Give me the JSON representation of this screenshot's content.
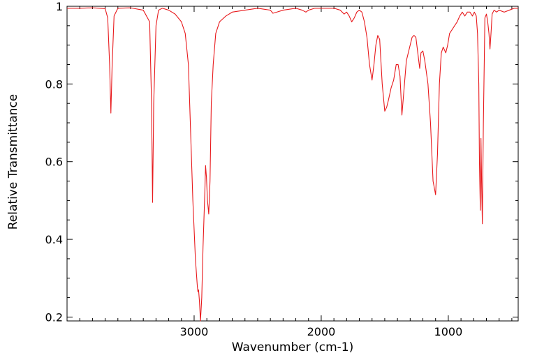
{
  "chart_data": {
    "type": "line",
    "title": "",
    "xlabel": "Wavenumber (cm-1)",
    "ylabel": "Relative Transmittance",
    "xlim": [
      4000,
      450
    ],
    "ylim": [
      0.19,
      1.0
    ],
    "x_reversed": true,
    "x_ticks": [
      3000,
      2000,
      1000
    ],
    "y_ticks": [
      0.2,
      0.4,
      0.6,
      0.8,
      1
    ],
    "y_tick_labels": [
      "0.2",
      "0.4",
      "0.6",
      "0.8",
      "1"
    ],
    "x_tick_labels": [
      "3000",
      "2000",
      "1000"
    ],
    "grid": false,
    "legend": "none",
    "line_color": "#e8191c",
    "series": [
      {
        "name": "",
        "points": [
          [
            4000,
            0.995
          ],
          [
            3900,
            0.995
          ],
          [
            3800,
            0.996
          ],
          [
            3700,
            0.994
          ],
          [
            3680,
            0.97
          ],
          [
            3665,
            0.85
          ],
          [
            3655,
            0.725
          ],
          [
            3645,
            0.85
          ],
          [
            3630,
            0.975
          ],
          [
            3600,
            0.995
          ],
          [
            3500,
            0.996
          ],
          [
            3400,
            0.99
          ],
          [
            3350,
            0.96
          ],
          [
            3335,
            0.75
          ],
          [
            3327,
            0.495
          ],
          [
            3318,
            0.75
          ],
          [
            3300,
            0.95
          ],
          [
            3280,
            0.99
          ],
          [
            3250,
            0.995
          ],
          [
            3200,
            0.99
          ],
          [
            3150,
            0.98
          ],
          [
            3100,
            0.96
          ],
          [
            3070,
            0.93
          ],
          [
            3045,
            0.85
          ],
          [
            3030,
            0.7
          ],
          [
            3010,
            0.5
          ],
          [
            2990,
            0.35
          ],
          [
            2975,
            0.28
          ],
          [
            2970,
            0.265
          ],
          [
            2965,
            0.27
          ],
          [
            2958,
            0.24
          ],
          [
            2950,
            0.19
          ],
          [
            2940,
            0.25
          ],
          [
            2930,
            0.38
          ],
          [
            2915,
            0.53
          ],
          [
            2910,
            0.59
          ],
          [
            2903,
            0.56
          ],
          [
            2895,
            0.5
          ],
          [
            2885,
            0.465
          ],
          [
            2875,
            0.55
          ],
          [
            2865,
            0.75
          ],
          [
            2850,
            0.85
          ],
          [
            2830,
            0.93
          ],
          [
            2800,
            0.96
          ],
          [
            2750,
            0.975
          ],
          [
            2700,
            0.985
          ],
          [
            2600,
            0.99
          ],
          [
            2500,
            0.995
          ],
          [
            2400,
            0.99
          ],
          [
            2380,
            0.982
          ],
          [
            2350,
            0.985
          ],
          [
            2300,
            0.99
          ],
          [
            2200,
            0.995
          ],
          [
            2150,
            0.99
          ],
          [
            2120,
            0.985
          ],
          [
            2100,
            0.99
          ],
          [
            2050,
            0.995
          ],
          [
            1900,
            0.995
          ],
          [
            1850,
            0.99
          ],
          [
            1820,
            0.98
          ],
          [
            1800,
            0.985
          ],
          [
            1780,
            0.975
          ],
          [
            1760,
            0.96
          ],
          [
            1740,
            0.97
          ],
          [
            1720,
            0.985
          ],
          [
            1700,
            0.99
          ],
          [
            1680,
            0.985
          ],
          [
            1660,
            0.96
          ],
          [
            1640,
            0.92
          ],
          [
            1620,
            0.85
          ],
          [
            1600,
            0.81
          ],
          [
            1585,
            0.85
          ],
          [
            1570,
            0.9
          ],
          [
            1555,
            0.925
          ],
          [
            1540,
            0.915
          ],
          [
            1520,
            0.8
          ],
          [
            1500,
            0.73
          ],
          [
            1485,
            0.74
          ],
          [
            1470,
            0.76
          ],
          [
            1450,
            0.79
          ],
          [
            1430,
            0.81
          ],
          [
            1410,
            0.85
          ],
          [
            1395,
            0.85
          ],
          [
            1380,
            0.82
          ],
          [
            1365,
            0.72
          ],
          [
            1350,
            0.78
          ],
          [
            1330,
            0.86
          ],
          [
            1300,
            0.9
          ],
          [
            1285,
            0.92
          ],
          [
            1270,
            0.925
          ],
          [
            1255,
            0.92
          ],
          [
            1240,
            0.88
          ],
          [
            1225,
            0.84
          ],
          [
            1215,
            0.88
          ],
          [
            1200,
            0.885
          ],
          [
            1185,
            0.86
          ],
          [
            1160,
            0.8
          ],
          [
            1140,
            0.7
          ],
          [
            1120,
            0.55
          ],
          [
            1100,
            0.515
          ],
          [
            1085,
            0.62
          ],
          [
            1070,
            0.8
          ],
          [
            1055,
            0.88
          ],
          [
            1040,
            0.895
          ],
          [
            1020,
            0.88
          ],
          [
            1005,
            0.9
          ],
          [
            990,
            0.93
          ],
          [
            970,
            0.94
          ],
          [
            950,
            0.95
          ],
          [
            930,
            0.96
          ],
          [
            910,
            0.975
          ],
          [
            890,
            0.985
          ],
          [
            870,
            0.975
          ],
          [
            850,
            0.985
          ],
          [
            830,
            0.985
          ],
          [
            810,
            0.975
          ],
          [
            795,
            0.985
          ],
          [
            780,
            0.975
          ],
          [
            770,
            0.93
          ],
          [
            760,
            0.8
          ],
          [
            755,
            0.6
          ],
          [
            748,
            0.475
          ],
          [
            743,
            0.66
          ],
          [
            738,
            0.55
          ],
          [
            732,
            0.44
          ],
          [
            724,
            0.7
          ],
          [
            712,
            0.97
          ],
          [
            700,
            0.98
          ],
          [
            690,
            0.96
          ],
          [
            680,
            0.93
          ],
          [
            672,
            0.89
          ],
          [
            664,
            0.93
          ],
          [
            655,
            0.98
          ],
          [
            640,
            0.99
          ],
          [
            620,
            0.985
          ],
          [
            600,
            0.99
          ],
          [
            560,
            0.985
          ],
          [
            520,
            0.99
          ],
          [
            480,
            0.995
          ],
          [
            450,
            0.995
          ]
        ]
      }
    ]
  }
}
